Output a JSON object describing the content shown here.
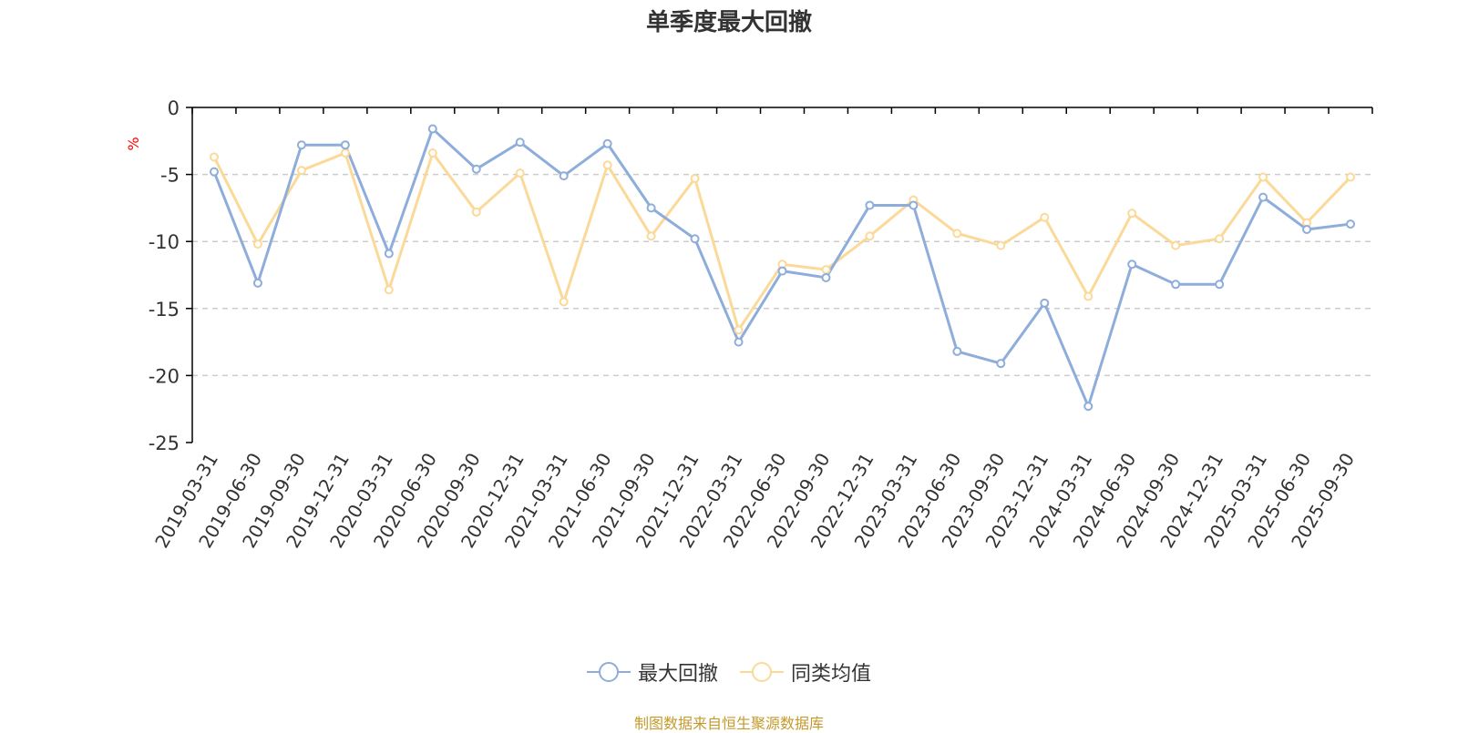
{
  "chart_data": {
    "type": "line",
    "title": "单季度最大回撤",
    "ylabel": "%",
    "xlabel": "",
    "ylim": [
      -25,
      0
    ],
    "yticks": [
      0,
      -5,
      -10,
      -15,
      -20,
      -25
    ],
    "categories": [
      "2019-03-31",
      "2019-06-30",
      "2019-09-30",
      "2019-12-31",
      "2020-03-31",
      "2020-06-30",
      "2020-09-30",
      "2020-12-31",
      "2021-03-31",
      "2021-06-30",
      "2021-09-30",
      "2021-12-31",
      "2022-03-31",
      "2022-06-30",
      "2022-09-30",
      "2022-12-31",
      "2023-03-31",
      "2023-06-30",
      "2023-09-30",
      "2023-12-31",
      "2024-03-31",
      "2024-06-30",
      "2024-09-30",
      "2024-12-31",
      "2025-03-31",
      "2025-06-30",
      "2025-09-30"
    ],
    "series": [
      {
        "name": "最大回撤",
        "color": "#8eaddb",
        "values": [
          -4.8,
          -13.1,
          -2.8,
          -2.8,
          -10.9,
          -1.6,
          -4.6,
          -2.6,
          -5.1,
          -2.7,
          -7.5,
          -9.8,
          -17.5,
          -12.2,
          -12.7,
          -7.3,
          -7.3,
          -18.2,
          -19.1,
          -14.6,
          -22.3,
          -11.7,
          -13.2,
          -13.2,
          -6.7,
          -9.1,
          -8.7
        ]
      },
      {
        "name": "同类均值",
        "color": "#fbd999",
        "values": [
          -3.7,
          -10.2,
          -4.7,
          -3.4,
          -13.6,
          -3.4,
          -7.8,
          -4.9,
          -14.5,
          -4.3,
          -9.6,
          -5.3,
          -16.6,
          -11.7,
          -12.1,
          -9.6,
          -6.9,
          -9.4,
          -10.3,
          -8.2,
          -14.1,
          -7.9,
          -10.3,
          -9.8,
          -5.2,
          -8.6,
          -5.2
        ]
      }
    ],
    "legend_position": "bottom",
    "grid": true
  },
  "footer": {
    "source_text": "制图数据来自恒生聚源数据库",
    "source_color": "#c49a2a"
  }
}
